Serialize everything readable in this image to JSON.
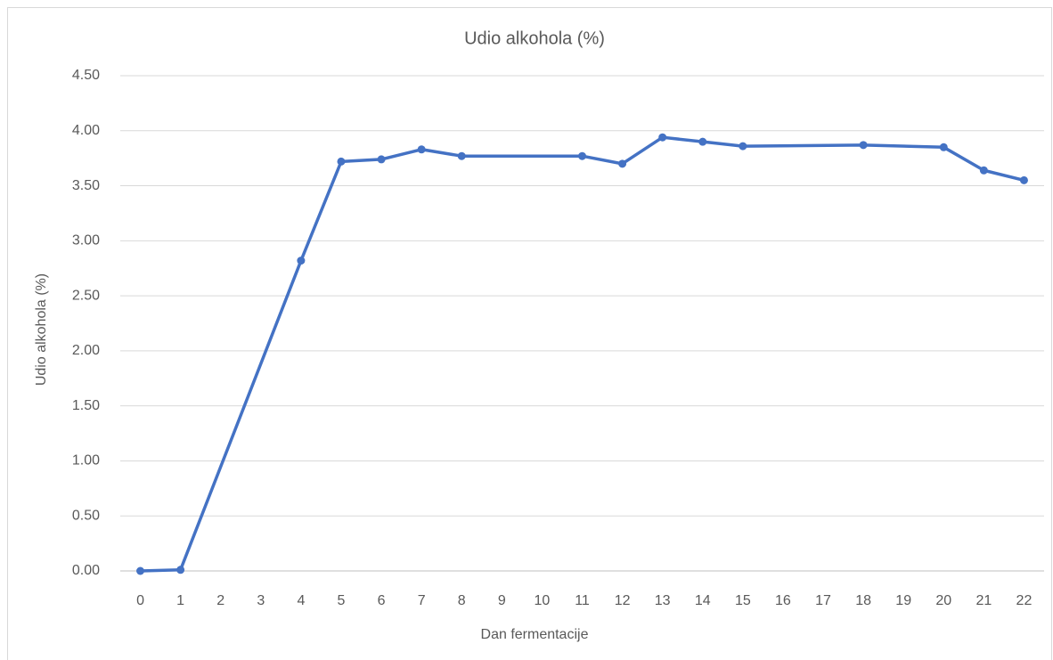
{
  "chart_data": {
    "type": "line",
    "title": "Udio alkohola (%)",
    "x_label": "Dan fermentacije",
    "y_label": "Udio alkohola (%)",
    "x": [
      0,
      1,
      4,
      5,
      6,
      7,
      8,
      11,
      12,
      13,
      14,
      15,
      18,
      20,
      21,
      22
    ],
    "series": [
      {
        "name": "Udio alkohola (%)",
        "color": "#4472c4",
        "values": [
          0.0,
          0.01,
          2.82,
          3.72,
          3.74,
          3.83,
          3.77,
          3.77,
          3.7,
          3.94,
          3.9,
          3.86,
          3.87,
          3.85,
          3.64,
          3.55
        ]
      }
    ],
    "xlim": [
      -0.5,
      22.5
    ],
    "xticks": [
      0,
      1,
      2,
      3,
      4,
      5,
      6,
      7,
      8,
      9,
      10,
      11,
      12,
      13,
      14,
      15,
      16,
      17,
      18,
      19,
      20,
      21,
      22
    ],
    "ylim": [
      0,
      4.5
    ],
    "yticks": [
      {
        "value": 0,
        "label": "0.00"
      },
      {
        "value": 0.5,
        "label": "0.50"
      },
      {
        "value": 1,
        "label": "1.00"
      },
      {
        "value": 1.5,
        "label": "1.50"
      },
      {
        "value": 2,
        "label": "2.00"
      },
      {
        "value": 2.5,
        "label": "2.50"
      },
      {
        "value": 3,
        "label": "3.00"
      },
      {
        "value": 3.5,
        "label": "3.50"
      },
      {
        "value": 4,
        "label": "4.00"
      },
      {
        "value": 4.5,
        "label": "4.50"
      }
    ],
    "grid": true
  }
}
